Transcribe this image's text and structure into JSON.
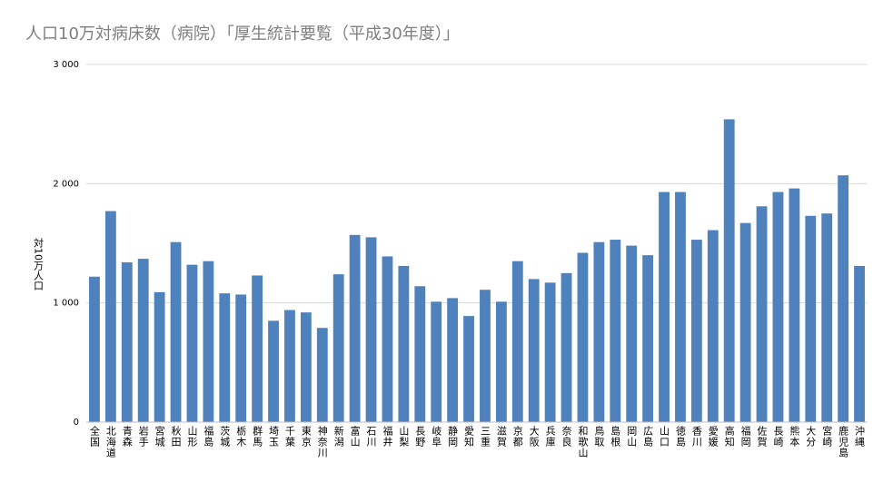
{
  "chart_data": {
    "type": "bar",
    "title": "人口10万対病床数（病院）「厚生統計要覧（平成30年度）」",
    "y_label": "対10万人口",
    "categories": [
      "全国",
      "北海道",
      "青森",
      "岩手",
      "宮城",
      "秋田",
      "山形",
      "福島",
      "茨城",
      "栃木",
      "群馬",
      "埼玉",
      "千葉",
      "東京",
      "神奈川",
      "新潟",
      "富山",
      "石川",
      "福井",
      "山梨",
      "長野",
      "岐阜",
      "静岡",
      "愛知",
      "三重",
      "滋賀",
      "京都",
      "大阪",
      "兵庫",
      "奈良",
      "和歌山",
      "鳥取",
      "島根",
      "岡山",
      "広島",
      "山口",
      "徳島",
      "香川",
      "愛媛",
      "高知",
      "福岡",
      "佐賀",
      "長崎",
      "熊本",
      "大分",
      "宮崎",
      "鹿児島",
      "沖縄"
    ],
    "values": [
      1220,
      1770,
      1340,
      1370,
      1090,
      1510,
      1320,
      1350,
      1080,
      1070,
      1230,
      850,
      940,
      920,
      790,
      1240,
      1570,
      1550,
      1390,
      1310,
      1140,
      1010,
      1040,
      890,
      1110,
      1010,
      1350,
      1200,
      1170,
      1250,
      1420,
      1510,
      1530,
      1480,
      1400,
      1930,
      1930,
      1530,
      1610,
      2540,
      1670,
      1810,
      1930,
      1960,
      1730,
      1750,
      2070,
      1310
    ],
    "color": "#4f81bd",
    "ylim": [
      0,
      3000
    ],
    "yticks": [
      0,
      {
        "value": 1000,
        "label": "1 000"
      },
      {
        "value": 2000,
        "label": "2 000"
      },
      {
        "value": 3000,
        "label": "3 000"
      }
    ],
    "grid": true
  }
}
